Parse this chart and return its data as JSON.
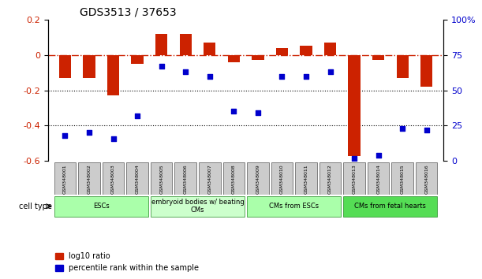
{
  "title": "GDS3513 / 37653",
  "samples": [
    "GSM348001",
    "GSM348002",
    "GSM348003",
    "GSM348004",
    "GSM348005",
    "GSM348006",
    "GSM348007",
    "GSM348008",
    "GSM348009",
    "GSM348010",
    "GSM348011",
    "GSM348012",
    "GSM348013",
    "GSM348014",
    "GSM348015",
    "GSM348016"
  ],
  "log10_ratio": [
    -0.13,
    -0.13,
    -0.23,
    -0.05,
    0.12,
    0.12,
    0.07,
    -0.04,
    -0.03,
    0.04,
    0.05,
    0.07,
    -0.57,
    -0.03,
    -0.13,
    -0.18
  ],
  "percentile_rank": [
    18,
    20,
    16,
    32,
    67,
    63,
    60,
    35,
    34,
    60,
    60,
    63,
    2,
    4,
    23,
    22
  ],
  "cell_groups": [
    {
      "label": "ESCs",
      "start": 0,
      "end": 3,
      "color": "#aaffaa"
    },
    {
      "label": "embryoid bodies w/ beating\nCMs",
      "start": 4,
      "end": 7,
      "color": "#ccffcc"
    },
    {
      "label": "CMs from ESCs",
      "start": 8,
      "end": 11,
      "color": "#aaffaa"
    },
    {
      "label": "CMs from fetal hearts",
      "start": 12,
      "end": 15,
      "color": "#55dd55"
    }
  ],
  "bar_color": "#cc2200",
  "dot_color": "#0000cc",
  "ref_line_color": "#cc2200",
  "grid_color": "#000000",
  "ylim_left": [
    -0.6,
    0.2
  ],
  "ylim_right": [
    0,
    100
  ],
  "yticks_left": [
    -0.6,
    -0.4,
    -0.2,
    0.0,
    0.2
  ],
  "yticks_right": [
    0,
    25,
    50,
    75,
    100
  ],
  "ytick_labels_right": [
    "0",
    "25",
    "50",
    "75",
    "100%"
  ]
}
